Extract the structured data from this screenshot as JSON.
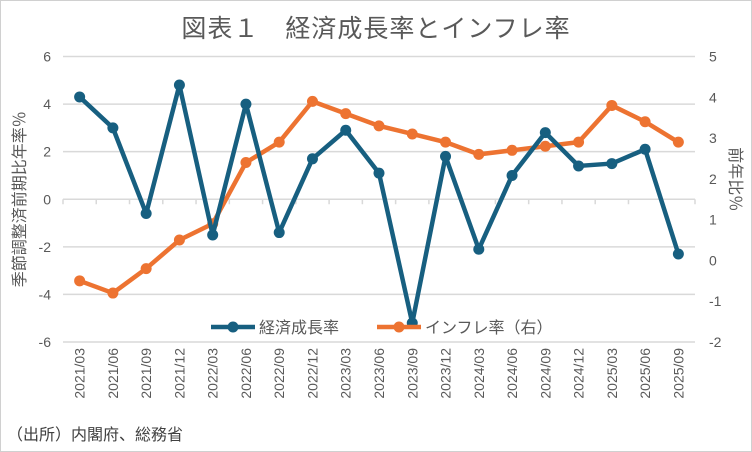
{
  "title": "図表１　経済成長率とインフレ率",
  "source": "（出所）内閣府、総務省",
  "chart_data": {
    "type": "line",
    "title": "図表１　経済成長率とインフレ率",
    "categories": [
      "2021/03",
      "2021/06",
      "2021/09",
      "2021/12",
      "2022/03",
      "2022/06",
      "2022/09",
      "2022/12",
      "2023/03",
      "2023/06",
      "2023/09",
      "2023/12",
      "2024/03",
      "2024/06",
      "2024/09",
      "2024/12",
      "2025/03",
      "2025/06",
      "2025/09"
    ],
    "ylabel": "季節調整済前期比年率％",
    "y2label": "前年比％",
    "ylim": [
      -6,
      6
    ],
    "yticks": [
      -6,
      -4,
      -2,
      0,
      2,
      4,
      6
    ],
    "y2lim": [
      -2,
      5
    ],
    "y2ticks": [
      -2,
      -1,
      0,
      1,
      2,
      3,
      4,
      5
    ],
    "grid": true,
    "legend": "bottom",
    "series": [
      {
        "name": "経済成長率",
        "axis": "left",
        "color": "#175f80",
        "values": [
          4.3,
          3.0,
          -0.6,
          4.8,
          -1.5,
          4.0,
          -1.4,
          1.7,
          2.9,
          1.1,
          -5.2,
          1.8,
          -2.1,
          1.0,
          2.8,
          1.4,
          1.5,
          2.1,
          -2.3
        ]
      },
      {
        "name": "インフレ率（右）",
        "axis": "right",
        "color": "#ed7331",
        "values": [
          -0.5,
          -0.8,
          -0.2,
          0.5,
          0.9,
          2.4,
          2.9,
          3.9,
          3.6,
          3.3,
          3.1,
          2.9,
          2.6,
          2.7,
          2.8,
          2.9,
          3.8,
          3.4,
          2.9
        ]
      }
    ]
  }
}
